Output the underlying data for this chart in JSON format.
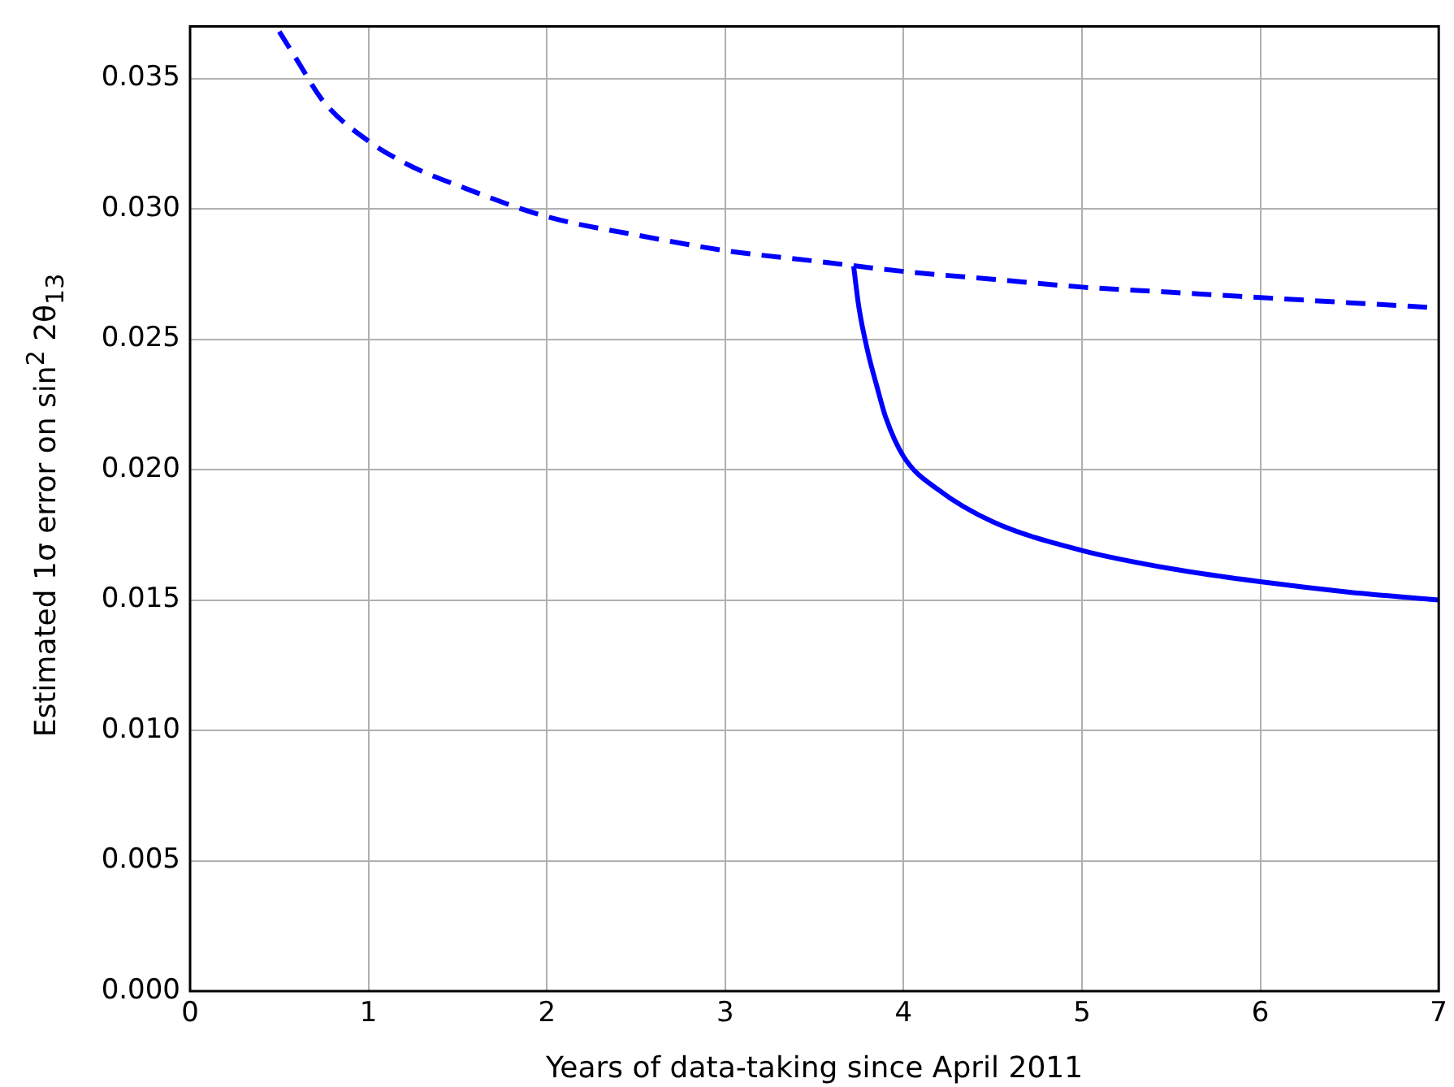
{
  "chart_data": {
    "type": "line",
    "xlabel": "Years of data-taking since April 2011",
    "ylabel": "Estimated 1σ error on sin$^{2}$ 2θ$_{13}$",
    "xlim": [
      0,
      7
    ],
    "xticks": [
      0,
      1,
      2,
      3,
      4,
      5,
      6,
      7
    ],
    "ylim": [
      0,
      0.037
    ],
    "yticks": [
      {
        "value": 0,
        "label": "0.000"
      },
      {
        "value": 0.005,
        "label": "0.005"
      },
      {
        "value": 0.01,
        "label": "0.010"
      },
      {
        "value": 0.015,
        "label": "0.015"
      },
      {
        "value": 0.02,
        "label": "0.020"
      },
      {
        "value": 0.025,
        "label": "0.025"
      },
      {
        "value": 0.03,
        "label": "0.030"
      },
      {
        "value": 0.035,
        "label": "0.035"
      }
    ],
    "grid": true,
    "marker": "none",
    "series": [
      {
        "color": "#0000ff",
        "line_style": "dashed",
        "x": [
          0.5,
          0.6,
          0.75,
          1,
          1.25,
          1.5,
          2,
          2.5,
          3,
          3.5,
          4,
          4.5,
          5,
          5.5,
          6,
          6.5,
          7
        ],
        "values": [
          0.0368,
          0.0357,
          0.0341,
          0.0326,
          0.0316,
          0.0309,
          0.0297,
          0.029,
          0.0284,
          0.028,
          0.0276,
          0.0273,
          0.027,
          0.0268,
          0.0266,
          0.0264,
          0.0262
        ]
      },
      {
        "color": "#0000ff",
        "line_style": "solid",
        "x": [
          3.72,
          3.75,
          3.8,
          3.85,
          3.9,
          4,
          4.2,
          4.5,
          5,
          5.5,
          6,
          6.5,
          7
        ],
        "values": [
          0.0278,
          0.0262,
          0.0245,
          0.0232,
          0.022,
          0.0205,
          0.0192,
          0.018,
          0.0169,
          0.0162,
          0.0157,
          0.0153,
          0.015
        ]
      }
    ]
  }
}
